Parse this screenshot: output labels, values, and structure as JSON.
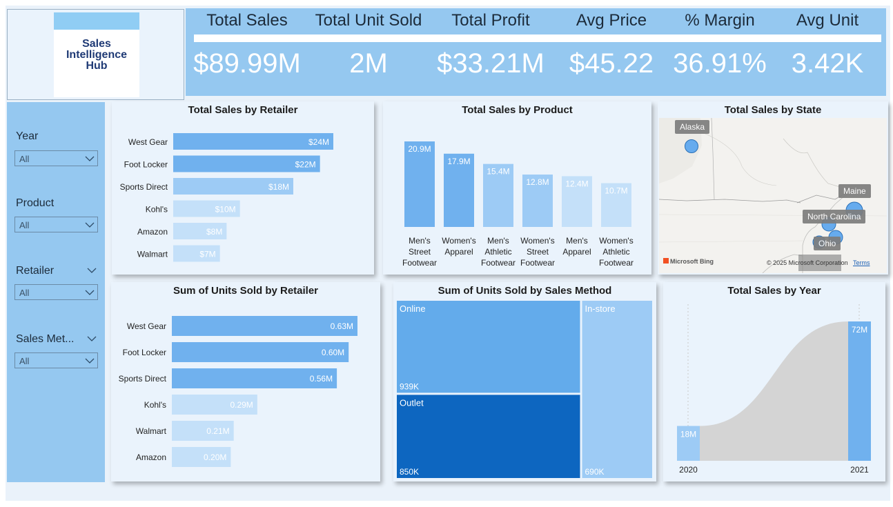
{
  "logo": {
    "line1": "Sales",
    "line2": "Intelligence",
    "line3": "Hub"
  },
  "kpis": [
    {
      "label": "Total Sales",
      "value": "$89.99M"
    },
    {
      "label": "Total Unit Sold",
      "value": "2M"
    },
    {
      "label": "Total Profit",
      "value": "$33.21M"
    },
    {
      "label": "Avg Price",
      "value": "$45.22"
    },
    {
      "label": "% Margin",
      "value": "36.91%"
    },
    {
      "label": "Avg Unit",
      "value": "3.42K"
    }
  ],
  "slicers": [
    {
      "label": "Year",
      "value": "All"
    },
    {
      "label": "Product",
      "value": "All"
    },
    {
      "label": "Retailer",
      "value": "All"
    },
    {
      "label": "Sales Met...",
      "value": "All"
    }
  ],
  "map": {
    "title": "Total Sales by State",
    "states": [
      "Alaska",
      "Maine",
      "North Carolina",
      "Ohio"
    ],
    "attribution": "© 2025 Microsoft Corporation",
    "terms": "Terms",
    "brand": "Microsoft Bing"
  },
  "colors": {
    "accent": "#70b1ee",
    "light": "#9dcbf5",
    "lighter": "#c4e0f9",
    "dark": "#0d66c0",
    "panel": "#eaf3fc"
  },
  "chart_data": [
    {
      "type": "bar",
      "orientation": "horizontal",
      "title": "Total Sales by Retailer",
      "categories": [
        "West Gear",
        "Foot Locker",
        "Sports Direct",
        "Kohl's",
        "Amazon",
        "Walmart"
      ],
      "values": [
        24,
        22,
        18,
        10,
        8,
        7
      ],
      "labels": [
        "$24M",
        "$22M",
        "$18M",
        "$10M",
        "$8M",
        "$7M"
      ],
      "unit": "M"
    },
    {
      "type": "bar",
      "orientation": "vertical",
      "title": "Total Sales by Product",
      "categories": [
        [
          "Men's",
          "Street",
          "Footwear"
        ],
        [
          "Women's",
          "Apparel"
        ],
        [
          "Men's",
          "Athletic",
          "Footwear"
        ],
        [
          "Women's",
          "Street",
          "Footwear"
        ],
        [
          "Men's",
          "Apparel"
        ],
        [
          "Women's",
          "Athletic",
          "Footwear"
        ]
      ],
      "values": [
        20.9,
        17.9,
        15.4,
        12.8,
        12.4,
        10.7
      ],
      "labels": [
        "20.9M",
        "17.9M",
        "15.4M",
        "12.8M",
        "12.4M",
        "10.7M"
      ],
      "unit": "M"
    },
    {
      "type": "bar",
      "orientation": "horizontal",
      "title": "Sum of Units Sold by Retailer",
      "categories": [
        "West Gear",
        "Foot Locker",
        "Sports Direct",
        "Kohl's",
        "Walmart",
        "Amazon"
      ],
      "values": [
        0.63,
        0.6,
        0.56,
        0.29,
        0.21,
        0.2
      ],
      "labels": [
        "0.63M",
        "0.60M",
        "0.56M",
        "0.29M",
        "0.21M",
        "0.20M"
      ],
      "unit": "M"
    },
    {
      "type": "treemap",
      "title": "Sum of Units Sold by Sales Method",
      "categories": [
        "Online",
        "Outlet",
        "In-store"
      ],
      "values": [
        939,
        850,
        690
      ],
      "labels": [
        "939K",
        "850K",
        "690K"
      ],
      "unit": "K"
    },
    {
      "type": "ribbon",
      "title": "Total Sales by Year",
      "categories": [
        "2020",
        "2021"
      ],
      "values": [
        18,
        72
      ],
      "labels": [
        "18M",
        "72M"
      ],
      "unit": "M"
    }
  ]
}
